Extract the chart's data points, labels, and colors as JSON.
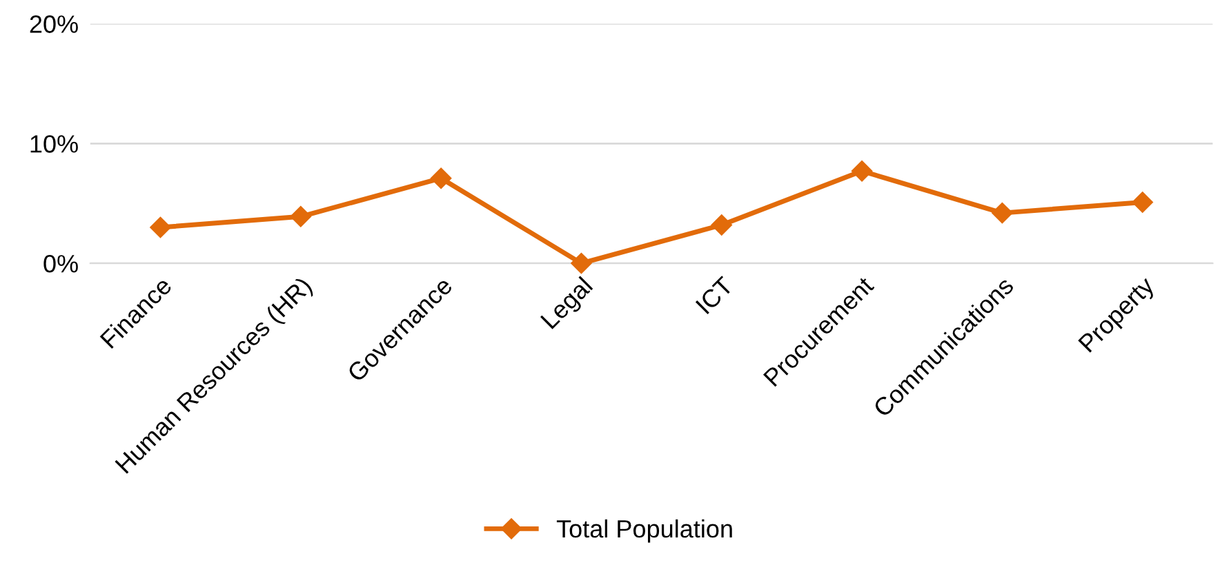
{
  "chart_data": {
    "type": "line",
    "categories": [
      "Finance",
      "Human Resources (HR)",
      "Governance",
      "Legal",
      "ICT",
      "Procurement",
      "Communications",
      "Property"
    ],
    "series": [
      {
        "name": "Total Population",
        "color": "#e26b0a",
        "values": [
          3.0,
          3.9,
          7.1,
          0.0,
          3.2,
          7.7,
          4.2,
          5.1
        ]
      }
    ],
    "ylim": [
      0,
      20
    ],
    "yticks": [
      {
        "value": 0,
        "label": "0%"
      },
      {
        "value": 10,
        "label": "10%"
      },
      {
        "value": 20,
        "label": "20%"
      }
    ],
    "grid": "y",
    "legend": "bottom",
    "marker": "diamond",
    "line_style": "solid"
  }
}
